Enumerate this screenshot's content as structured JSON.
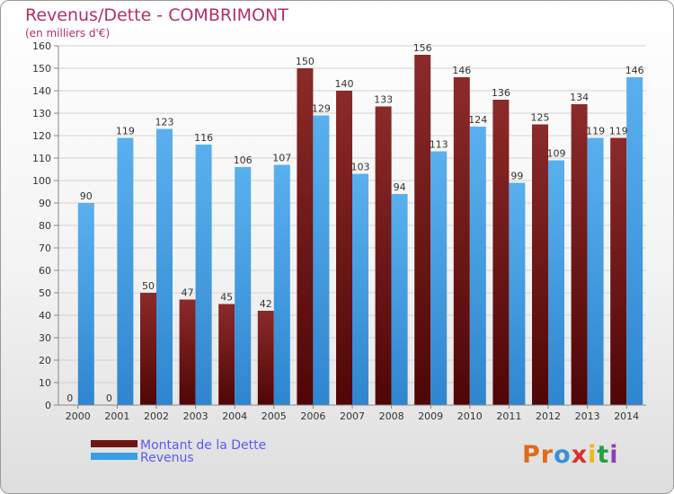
{
  "header": {
    "title": "Revenus/Dette - COMBRIMONT",
    "subtitle": "(en milliers d'€)"
  },
  "legend": [
    {
      "label": "Montant de la Dette",
      "color": "#6e1414"
    },
    {
      "label": "Revenus",
      "color": "#3a9ee6"
    }
  ],
  "logo": {
    "text": "Proxiti",
    "letter_colors": [
      "#e06a1b",
      "#e06a1b",
      "#3a8fd8",
      "#d93030",
      "#f2b51a",
      "#2b9d44",
      "#8a3fb8"
    ]
  },
  "colors": {
    "debt_top": "#8c2a2a",
    "debt_bottom": "#4f0606",
    "revenue_top": "#5ab0ee",
    "revenue_bottom": "#2f86cf",
    "title": "#b0306a",
    "legend_text": "#5a5cf0"
  },
  "chart_data": {
    "type": "bar",
    "categories": [
      "2000",
      "2001",
      "2002",
      "2003",
      "2004",
      "2005",
      "2006",
      "2007",
      "2008",
      "2009",
      "2010",
      "2011",
      "2012",
      "2013",
      "2014"
    ],
    "series": [
      {
        "name": "Montant de la Dette",
        "values": [
          0,
          0,
          50,
          47,
          45,
          42,
          150,
          140,
          133,
          156,
          146,
          136,
          125,
          134,
          119
        ]
      },
      {
        "name": "Revenus",
        "values": [
          90,
          119,
          123,
          116,
          106,
          107,
          129,
          103,
          94,
          113,
          124,
          99,
          109,
          119,
          146
        ]
      }
    ],
    "ylim": [
      0,
      160
    ],
    "yticks": [
      0,
      10,
      20,
      30,
      40,
      50,
      60,
      70,
      80,
      90,
      100,
      110,
      120,
      130,
      140,
      150,
      160
    ],
    "grid": true,
    "legend_position": "bottom-left"
  }
}
